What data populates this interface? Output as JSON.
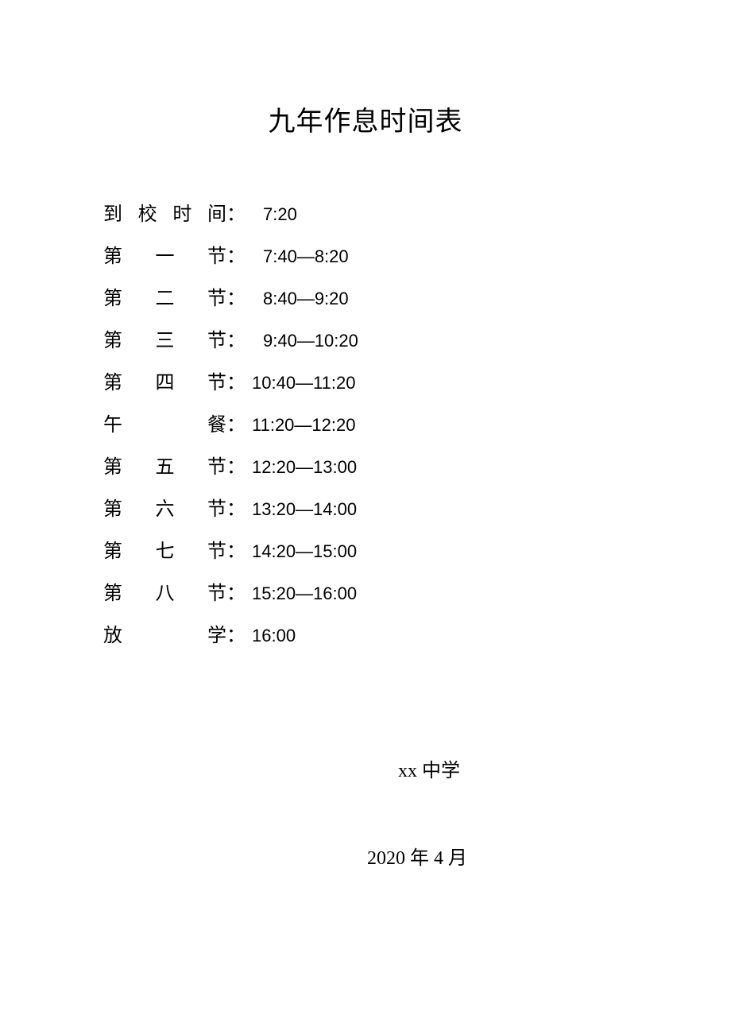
{
  "title": "九年作息时间表",
  "rows": [
    {
      "label_chars": [
        "到",
        "校",
        "时",
        "间"
      ],
      "time": "7:20",
      "time_indent": 14
    },
    {
      "label_chars": [
        "第",
        "一",
        "节"
      ],
      "time": "7:40—8:20",
      "time_indent": 14
    },
    {
      "label_chars": [
        "第",
        "二",
        "节"
      ],
      "time": "8:40—9:20",
      "time_indent": 14
    },
    {
      "label_chars": [
        "第",
        "三",
        "节"
      ],
      "time": "9:40—10:20",
      "time_indent": 14
    },
    {
      "label_chars": [
        "第",
        "四",
        "节"
      ],
      "time": "10:40—11:20",
      "time_indent": 0
    },
    {
      "label_chars": [
        "午",
        "餐"
      ],
      "time": "11:20—12:20",
      "time_indent": 0
    },
    {
      "label_chars": [
        "第",
        "五",
        "节"
      ],
      "time": "12:20—13:00",
      "time_indent": 0
    },
    {
      "label_chars": [
        "第",
        "六",
        "节"
      ],
      "time": "13:20—14:00",
      "time_indent": 0
    },
    {
      "label_chars": [
        "第",
        "七",
        "节"
      ],
      "time": "14:20—15:00",
      "time_indent": 0
    },
    {
      "label_chars": [
        "第",
        "八",
        "节"
      ],
      "time": "15:20—16:00",
      "time_indent": 0
    },
    {
      "label_chars": [
        "放",
        "学"
      ],
      "time": "16:00",
      "time_indent": 0
    }
  ],
  "label_width": 132,
  "colon": "：",
  "school": "xx 中学",
  "date": "2020 年 4 月",
  "colors": {
    "background": "#ffffff",
    "text": "#000000"
  },
  "typography": {
    "title_fontsize": 34,
    "body_fontsize": 24,
    "time_fontsize": 22,
    "font_family_cjk": "SimSun",
    "font_family_latin": "Arial"
  }
}
